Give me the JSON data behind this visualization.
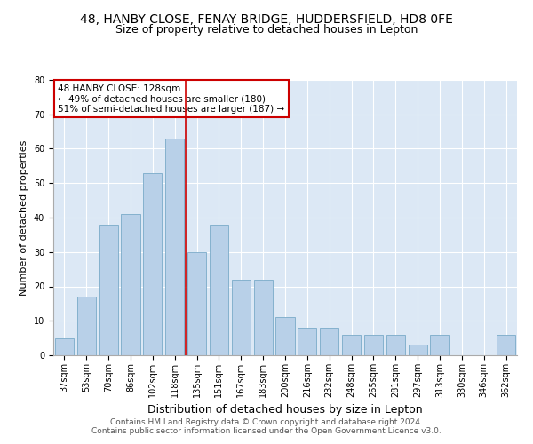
{
  "title1": "48, HANBY CLOSE, FENAY BRIDGE, HUDDERSFIELD, HD8 0FE",
  "title2": "Size of property relative to detached houses in Lepton",
  "xlabel": "Distribution of detached houses by size in Lepton",
  "ylabel": "Number of detached properties",
  "categories": [
    "37sqm",
    "53sqm",
    "70sqm",
    "86sqm",
    "102sqm",
    "118sqm",
    "135sqm",
    "151sqm",
    "167sqm",
    "183sqm",
    "200sqm",
    "216sqm",
    "232sqm",
    "248sqm",
    "265sqm",
    "281sqm",
    "297sqm",
    "313sqm",
    "330sqm",
    "346sqm",
    "362sqm"
  ],
  "values": [
    5,
    17,
    38,
    41,
    53,
    63,
    30,
    38,
    22,
    22,
    11,
    8,
    8,
    6,
    6,
    6,
    3,
    6,
    0,
    0,
    6
  ],
  "bar_color": "#b8d0e8",
  "bar_edge_color": "#7aaac8",
  "vline_x": 5.5,
  "vline_color": "#cc0000",
  "annotation_text": "48 HANBY CLOSE: 128sqm\n← 49% of detached houses are smaller (180)\n51% of semi-detached houses are larger (187) →",
  "annotation_box_color": "#ffffff",
  "annotation_border_color": "#cc0000",
  "ylim": [
    0,
    80
  ],
  "yticks": [
    0,
    10,
    20,
    30,
    40,
    50,
    60,
    70,
    80
  ],
  "background_color": "#dce8f5",
  "footer": "Contains HM Land Registry data © Crown copyright and database right 2024.\nContains public sector information licensed under the Open Government Licence v3.0.",
  "title1_fontsize": 10,
  "title2_fontsize": 9,
  "xlabel_fontsize": 9,
  "ylabel_fontsize": 8,
  "tick_fontsize": 7,
  "footer_fontsize": 6.5
}
